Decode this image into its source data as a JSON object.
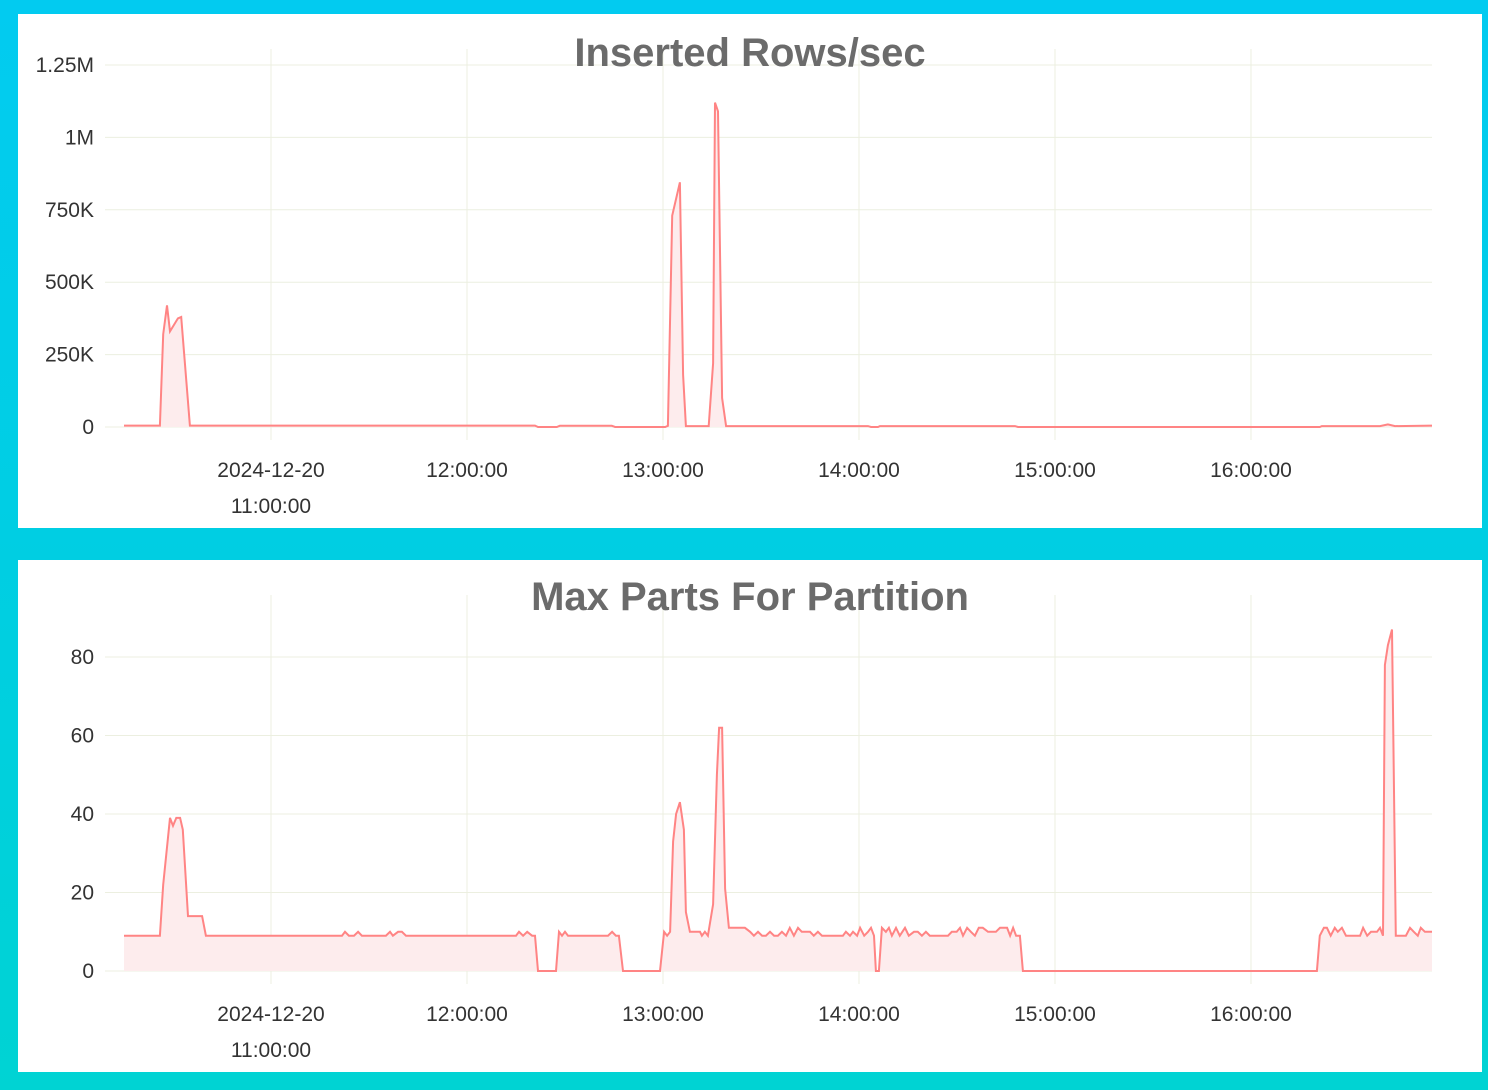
{
  "colors": {
    "line": "#ff8484",
    "fill": "#fdeced",
    "grid": "#ecefe0",
    "background": "#00cce8"
  },
  "chart_data": [
    {
      "type": "area",
      "title": "Inserted Rows/sec",
      "date": "2024-12-20",
      "xlim": [
        "10:15:00",
        "16:55:25"
      ],
      "x_ticks": [
        "11:00:00",
        "12:00:00",
        "13:00:00",
        "14:00:00",
        "15:00:00",
        "16:00:00"
      ],
      "y_ticks": [
        0,
        250000,
        500000,
        750000,
        1000000,
        1250000
      ],
      "y_tick_labels": [
        "0",
        "250K",
        "500K",
        "750K",
        "1M",
        "1.25M"
      ],
      "ylim": [
        0,
        1250000
      ],
      "grid": true,
      "points": [
        [
          "10:15:00",
          5000
        ],
        [
          "10:26:00",
          5000
        ],
        [
          "10:27:00",
          320000
        ],
        [
          "10:28:10",
          420000
        ],
        [
          "10:29:05",
          330000
        ],
        [
          "10:31:30",
          375000
        ],
        [
          "10:32:30",
          380000
        ],
        [
          "10:35:10",
          5000
        ],
        [
          "12:20:50",
          5000
        ],
        [
          "12:21:45",
          0
        ],
        [
          "12:27:30",
          0
        ],
        [
          "12:28:25",
          4000
        ],
        [
          "12:44:20",
          4000
        ],
        [
          "12:45:20",
          0
        ],
        [
          "13:00:40",
          0
        ],
        [
          "13:01:30",
          4000
        ],
        [
          "13:02:50",
          730000
        ],
        [
          "13:05:10",
          845000
        ],
        [
          "13:06:10",
          180000
        ],
        [
          "13:07:00",
          3000
        ],
        [
          "13:14:00",
          3000
        ],
        [
          "13:15:20",
          220000
        ],
        [
          "13:15:55",
          1120000
        ],
        [
          "13:16:50",
          1090000
        ],
        [
          "13:18:05",
          100000
        ],
        [
          "13:19:20",
          3000
        ],
        [
          "14:02:45",
          3000
        ],
        [
          "14:03:40",
          0
        ],
        [
          "14:05:50",
          0
        ],
        [
          "14:06:25",
          3000
        ],
        [
          "14:47:45",
          3000
        ],
        [
          "14:48:40",
          0
        ],
        [
          "16:21:05",
          0
        ],
        [
          "16:21:40",
          3000
        ],
        [
          "16:39:30",
          3000
        ],
        [
          "16:41:55",
          9000
        ],
        [
          "16:44:05",
          3000
        ],
        [
          "16:55:25",
          5000
        ]
      ]
    },
    {
      "type": "area",
      "title": "Max Parts For Partition",
      "date": "2024-12-20",
      "xlim": [
        "10:15:00",
        "16:55:25"
      ],
      "x_ticks": [
        "11:00:00",
        "12:00:00",
        "13:00:00",
        "14:00:00",
        "15:00:00",
        "16:00:00"
      ],
      "y_ticks": [
        0,
        20,
        40,
        60,
        80
      ],
      "y_tick_labels": [
        "0",
        "20",
        "40",
        "60",
        "80"
      ],
      "ylim": [
        0,
        90
      ],
      "grid": true,
      "points": [
        [
          "10:15:00",
          9
        ],
        [
          "10:26:00",
          9
        ],
        [
          "10:27:00",
          22
        ],
        [
          "10:29:05",
          39
        ],
        [
          "10:30:00",
          37
        ],
        [
          "10:31:00",
          39
        ],
        [
          "10:32:10",
          39
        ],
        [
          "10:33:00",
          36
        ],
        [
          "10:34:35",
          14
        ],
        [
          "10:38:55",
          14
        ],
        [
          "10:40:05",
          9
        ],
        [
          "11:21:45",
          9
        ],
        [
          "11:22:40",
          10
        ],
        [
          "11:23:50",
          9
        ],
        [
          "11:25:25",
          9
        ],
        [
          "11:26:40",
          10
        ],
        [
          "11:27:50",
          9
        ],
        [
          "11:35:10",
          9
        ],
        [
          "11:36:25",
          10
        ],
        [
          "11:37:20",
          9
        ],
        [
          "11:38:55",
          10
        ],
        [
          "11:40:05",
          10
        ],
        [
          "11:41:20",
          9
        ],
        [
          "12:15:00",
          9
        ],
        [
          "12:15:55",
          10
        ],
        [
          "12:17:10",
          9
        ],
        [
          "12:18:25",
          10
        ],
        [
          "12:19:55",
          9
        ],
        [
          "12:20:50",
          9
        ],
        [
          "12:21:45",
          0
        ],
        [
          "12:27:15",
          0
        ],
        [
          "12:28:10",
          10
        ],
        [
          "12:29:05",
          9
        ],
        [
          "12:30:00",
          10
        ],
        [
          "12:30:55",
          9
        ],
        [
          "12:43:10",
          9
        ],
        [
          "12:44:25",
          10
        ],
        [
          "12:45:35",
          9
        ],
        [
          "12:46:30",
          9
        ],
        [
          "12:47:45",
          0
        ],
        [
          "12:59:05",
          0
        ],
        [
          "13:00:20",
          10
        ],
        [
          "13:01:15",
          9
        ],
        [
          "13:02:10",
          10
        ],
        [
          "13:03:05",
          33
        ],
        [
          "13:04:00",
          40
        ],
        [
          "13:05:10",
          43
        ],
        [
          "13:06:25",
          36
        ],
        [
          "13:07:00",
          15
        ],
        [
          "13:08:15",
          10
        ],
        [
          "13:11:20",
          10
        ],
        [
          "13:11:55",
          9
        ],
        [
          "13:12:50",
          10
        ],
        [
          "13:13:45",
          9
        ],
        [
          "13:15:20",
          17
        ],
        [
          "13:16:30",
          50
        ],
        [
          "13:17:10",
          62
        ],
        [
          "13:18:05",
          62
        ],
        [
          "13:19:00",
          21
        ],
        [
          "13:20:10",
          11
        ],
        [
          "13:25:05",
          11
        ],
        [
          "13:26:40",
          10
        ],
        [
          "13:27:50",
          9
        ],
        [
          "13:29:05",
          10
        ],
        [
          "13:30:20",
          9
        ],
        [
          "13:31:30",
          9
        ],
        [
          "13:32:45",
          10
        ],
        [
          "13:34:00",
          9
        ],
        [
          "13:35:10",
          9
        ],
        [
          "13:36:25",
          10
        ],
        [
          "13:37:40",
          9
        ],
        [
          "13:38:50",
          11
        ],
        [
          "13:40:05",
          9
        ],
        [
          "13:41:20",
          11
        ],
        [
          "13:42:30",
          10
        ],
        [
          "13:45:00",
          10
        ],
        [
          "13:46:10",
          9
        ],
        [
          "13:47:25",
          10
        ],
        [
          "13:48:40",
          9
        ],
        [
          "13:55:05",
          9
        ],
        [
          "13:56:00",
          10
        ],
        [
          "13:57:15",
          9
        ],
        [
          "13:58:10",
          10
        ],
        [
          "13:59:25",
          9
        ],
        [
          "14:00:20",
          11
        ],
        [
          "14:01:35",
          9
        ],
        [
          "14:02:45",
          10
        ],
        [
          "14:03:40",
          11
        ],
        [
          "14:04:35",
          9
        ],
        [
          "14:05:10",
          0
        ],
        [
          "14:06:05",
          0
        ],
        [
          "14:07:00",
          11
        ],
        [
          "14:08:15",
          10
        ],
        [
          "14:09:10",
          11
        ],
        [
          "14:10:05",
          9
        ],
        [
          "14:11:20",
          11
        ],
        [
          "14:12:30",
          9
        ],
        [
          "14:14:05",
          11
        ],
        [
          "14:15:15",
          9
        ],
        [
          "14:16:50",
          10
        ],
        [
          "14:18:00",
          10
        ],
        [
          "14:19:15",
          9
        ],
        [
          "14:20:30",
          10
        ],
        [
          "14:21:40",
          9
        ],
        [
          "14:23:15",
          9
        ],
        [
          "14:27:15",
          9
        ],
        [
          "14:28:25",
          10
        ],
        [
          "14:29:55",
          10
        ],
        [
          "14:30:55",
          11
        ],
        [
          "14:31:50",
          9
        ],
        [
          "14:33:05",
          11
        ],
        [
          "14:34:15",
          10
        ],
        [
          "14:35:30",
          9
        ],
        [
          "14:36:40",
          11
        ],
        [
          "14:37:55",
          11
        ],
        [
          "14:39:30",
          10
        ],
        [
          "14:41:55",
          10
        ],
        [
          "14:43:10",
          11
        ],
        [
          "14:45:20",
          11
        ],
        [
          "14:46:15",
          9
        ],
        [
          "14:47:10",
          11
        ],
        [
          "14:48:05",
          9
        ],
        [
          "14:49:15",
          9
        ],
        [
          "14:50:10",
          0
        ],
        [
          "16:20:10",
          0
        ],
        [
          "16:21:05",
          9
        ],
        [
          "16:22:20",
          11
        ],
        [
          "16:23:15",
          11
        ],
        [
          "16:24:25",
          9
        ],
        [
          "16:25:40",
          11
        ],
        [
          "16:26:35",
          10
        ],
        [
          "16:27:50",
          11
        ],
        [
          "16:29:05",
          9
        ],
        [
          "16:33:25",
          9
        ],
        [
          "16:34:20",
          11
        ],
        [
          "16:35:35",
          9
        ],
        [
          "16:36:45",
          10
        ],
        [
          "16:38:35",
          10
        ],
        [
          "16:39:30",
          11
        ],
        [
          "16:40:25",
          9
        ],
        [
          "16:41:00",
          78
        ],
        [
          "16:41:55",
          83
        ],
        [
          "16:43:10",
          87
        ],
        [
          "16:44:20",
          9
        ],
        [
          "16:47:25",
          9
        ],
        [
          "16:48:40",
          11
        ],
        [
          "16:49:50",
          10
        ],
        [
          "16:51:05",
          9
        ],
        [
          "16:52:00",
          11
        ],
        [
          "16:53:15",
          10
        ],
        [
          "16:55:25",
          10
        ]
      ]
    }
  ]
}
